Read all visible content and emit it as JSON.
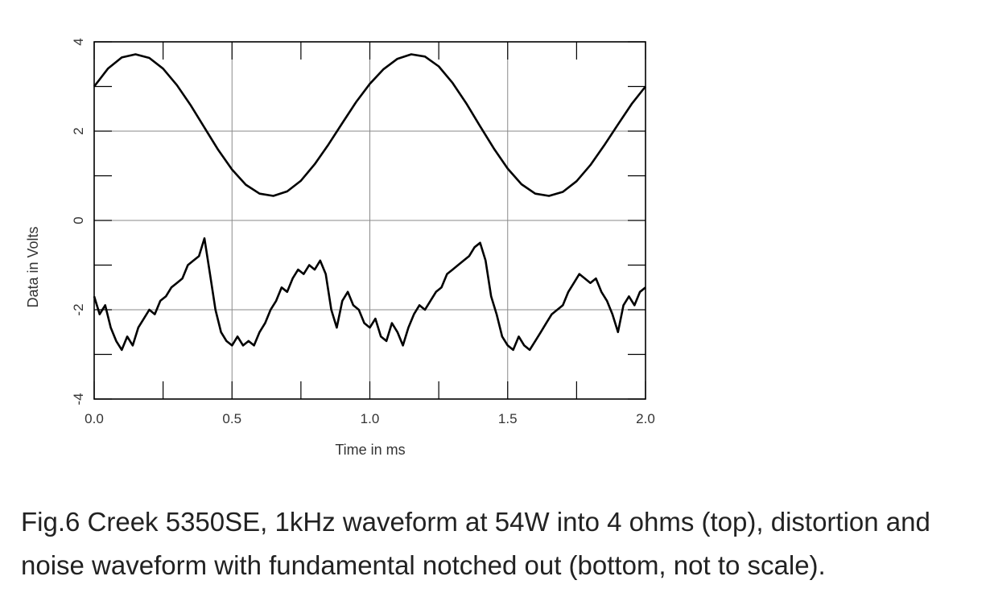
{
  "chart_data": {
    "type": "line",
    "xlabel": "Time in ms",
    "ylabel": "Data in Volts",
    "xlim": [
      0.0,
      2.0
    ],
    "ylim": [
      -4,
      4
    ],
    "x_ticks": [
      "0.0",
      "0.5",
      "1.0",
      "1.5",
      "2.0"
    ],
    "x_tick_values": [
      0.0,
      0.5,
      1.0,
      1.5,
      2.0
    ],
    "y_ticks": [
      "4",
      "2",
      "0",
      "-2",
      "-4"
    ],
    "y_tick_values": [
      4,
      2,
      0,
      -2,
      -4
    ],
    "grid": true,
    "series": [
      {
        "color": "#000000",
        "x": [
          0.0,
          0.05,
          0.1,
          0.15,
          0.2,
          0.25,
          0.3,
          0.35,
          0.4,
          0.45,
          0.5,
          0.55,
          0.6,
          0.65,
          0.7,
          0.75,
          0.8,
          0.85,
          0.9,
          0.95,
          1.0,
          1.05,
          1.1,
          1.15,
          1.2,
          1.25,
          1.3,
          1.35,
          1.4,
          1.45,
          1.5,
          1.55,
          1.6,
          1.65,
          1.7,
          1.75,
          1.8,
          1.85,
          1.9,
          1.95,
          2.0
        ],
        "y": [
          3.0,
          3.4,
          3.65,
          3.72,
          3.64,
          3.4,
          3.03,
          2.58,
          2.08,
          1.58,
          1.14,
          0.8,
          0.6,
          0.55,
          0.65,
          0.89,
          1.26,
          1.7,
          2.18,
          2.65,
          3.06,
          3.39,
          3.62,
          3.72,
          3.67,
          3.45,
          3.08,
          2.62,
          2.11,
          1.61,
          1.16,
          0.81,
          0.6,
          0.55,
          0.64,
          0.88,
          1.24,
          1.68,
          2.15,
          2.61,
          3.0
        ]
      },
      {
        "color": "#000000",
        "x": [
          0.0,
          0.02,
          0.04,
          0.06,
          0.08,
          0.1,
          0.12,
          0.14,
          0.16,
          0.18,
          0.2,
          0.22,
          0.24,
          0.26,
          0.28,
          0.3,
          0.32,
          0.34,
          0.36,
          0.38,
          0.4,
          0.42,
          0.44,
          0.46,
          0.48,
          0.5,
          0.52,
          0.54,
          0.56,
          0.58,
          0.6,
          0.62,
          0.64,
          0.66,
          0.68,
          0.7,
          0.72,
          0.74,
          0.76,
          0.78,
          0.8,
          0.82,
          0.84,
          0.86,
          0.88,
          0.9,
          0.92,
          0.94,
          0.96,
          0.98,
          1.0,
          1.02,
          1.04,
          1.06,
          1.08,
          1.1,
          1.12,
          1.14,
          1.16,
          1.18,
          1.2,
          1.22,
          1.24,
          1.26,
          1.28,
          1.3,
          1.32,
          1.34,
          1.36,
          1.38,
          1.4,
          1.42,
          1.44,
          1.46,
          1.48,
          1.5,
          1.52,
          1.54,
          1.56,
          1.58,
          1.6,
          1.62,
          1.64,
          1.66,
          1.68,
          1.7,
          1.72,
          1.74,
          1.76,
          1.78,
          1.8,
          1.82,
          1.84,
          1.86,
          1.88,
          1.9,
          1.92,
          1.94,
          1.96,
          1.98,
          2.0
        ],
        "y": [
          -1.7,
          -2.1,
          -1.9,
          -2.4,
          -2.7,
          -2.9,
          -2.6,
          -2.8,
          -2.4,
          -2.2,
          -2.0,
          -2.1,
          -1.8,
          -1.7,
          -1.5,
          -1.4,
          -1.3,
          -1.0,
          -0.9,
          -0.8,
          -0.4,
          -1.2,
          -2.0,
          -2.5,
          -2.7,
          -2.8,
          -2.6,
          -2.8,
          -2.7,
          -2.8,
          -2.5,
          -2.3,
          -2.0,
          -1.8,
          -1.5,
          -1.6,
          -1.3,
          -1.1,
          -1.2,
          -1.0,
          -1.1,
          -0.9,
          -1.2,
          -2.0,
          -2.4,
          -1.8,
          -1.6,
          -1.9,
          -2.0,
          -2.3,
          -2.4,
          -2.2,
          -2.6,
          -2.7,
          -2.3,
          -2.5,
          -2.8,
          -2.4,
          -2.1,
          -1.9,
          -2.0,
          -1.8,
          -1.6,
          -1.5,
          -1.2,
          -1.1,
          -1.0,
          -0.9,
          -0.8,
          -0.6,
          -0.5,
          -0.9,
          -1.7,
          -2.1,
          -2.6,
          -2.8,
          -2.9,
          -2.6,
          -2.8,
          -2.9,
          -2.7,
          -2.5,
          -2.3,
          -2.1,
          -2.0,
          -1.9,
          -1.6,
          -1.4,
          -1.2,
          -1.3,
          -1.4,
          -1.3,
          -1.6,
          -1.8,
          -2.1,
          -2.5,
          -1.9,
          -1.7,
          -1.9,
          -1.6,
          -1.5
        ]
      }
    ]
  },
  "caption": "Fig.6 Creek 5350SE, 1kHz waveform at 54W into 4 ohms (top), distortion and noise waveform with fundamental notched out (bottom, not to scale)."
}
